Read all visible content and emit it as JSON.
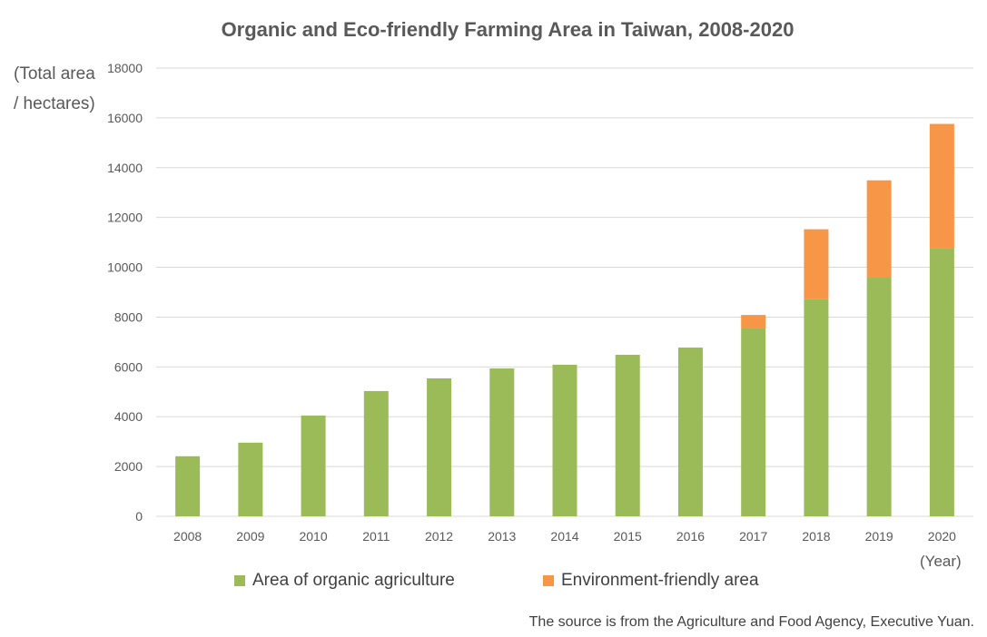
{
  "chart_data": {
    "type": "bar",
    "stacked": true,
    "title": "Organic and Eco-friendly Farming Area in Taiwan, 2008-2020",
    "ylabel_lines": [
      "(Total area",
      "/ hectares)"
    ],
    "xlabel": "(Year)",
    "categories": [
      "2008",
      "2009",
      "2010",
      "2011",
      "2012",
      "2013",
      "2014",
      "2015",
      "2016",
      "2017",
      "2018",
      "2019",
      "2020"
    ],
    "series": [
      {
        "name": "Area of organic agriculture",
        "color": "#9bbb59",
        "values": [
          2412,
          2958,
          4048,
          5030,
          5539,
          5939,
          6085,
          6485,
          6776,
          7576,
          8739,
          9600,
          10764
        ]
      },
      {
        "name": "Environment-friendly area",
        "color": "#f79646",
        "values": [
          0,
          0,
          0,
          0,
          0,
          0,
          0,
          0,
          0,
          509,
          2788,
          3891,
          4994
        ]
      }
    ],
    "ylim": [
      0,
      18000
    ],
    "yticks": [
      0,
      2000,
      4000,
      6000,
      8000,
      10000,
      12000,
      14000,
      16000,
      18000
    ],
    "grid": true,
    "legend_position": "bottom",
    "source": "The source is from the Agriculture and Food Agency, Executive Yuan."
  }
}
